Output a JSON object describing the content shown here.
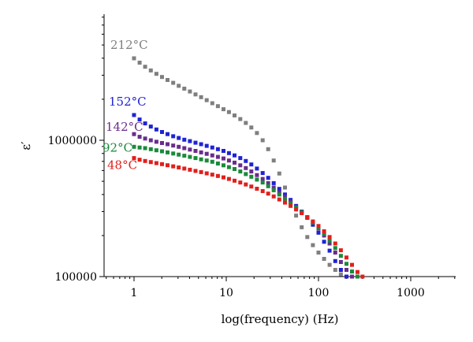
{
  "chart_data": {
    "type": "scatter",
    "title": "",
    "xlabel": "log(frequency) (Hz)",
    "ylabel": "ε′",
    "xscale": "log",
    "yscale": "log",
    "xlim": [
      0.5,
      3000
    ],
    "ylim": [
      100000,
      9000000
    ],
    "x_tick_labels": [
      "1",
      "10",
      "100",
      "1000"
    ],
    "y_tick_labels": [
      "100000",
      "1000000"
    ],
    "marker": "square",
    "grid": false,
    "legend": "inline-left",
    "series": [
      {
        "name": "212°C",
        "color": "#7f7f7f",
        "x": [
          1,
          1.15,
          1.32,
          1.52,
          1.75,
          2.01,
          2.31,
          2.66,
          3.05,
          3.51,
          4.04,
          4.64,
          5.34,
          6.14,
          7.06,
          8.11,
          9.33,
          10.7,
          12.3,
          14.2,
          16.3,
          18.7,
          21.5,
          24.8,
          28.5,
          32.7,
          37.6,
          43.3,
          49.8,
          57.2,
          65.8,
          75.6,
          87.0,
          100,
          115,
          132,
          152,
          175
        ],
        "y": [
          3990000,
          3710000,
          3460000,
          3250000,
          3070000,
          2910000,
          2770000,
          2640000,
          2510000,
          2390000,
          2280000,
          2170000,
          2070000,
          1970000,
          1870000,
          1780000,
          1690000,
          1610000,
          1520000,
          1430000,
          1340000,
          1240000,
          1130000,
          1000000,
          860000,
          710000,
          570000,
          450000,
          350000,
          280000,
          230000,
          195000,
          170000,
          150000,
          135000,
          122000,
          112000,
          104000
        ]
      },
      {
        "name": "152°C",
        "color": "#1f23d4",
        "x": [
          1,
          1.15,
          1.32,
          1.52,
          1.75,
          2.01,
          2.31,
          2.66,
          3.05,
          3.51,
          4.04,
          4.64,
          5.34,
          6.14,
          7.06,
          8.11,
          9.33,
          10.7,
          12.3,
          14.2,
          16.3,
          18.7,
          21.5,
          24.8,
          28.5,
          32.7,
          37.6,
          43.3,
          49.8,
          57.2,
          65.8,
          75.6,
          87.0,
          100,
          115,
          132,
          152,
          175,
          201
        ],
        "y": [
          1530000,
          1420000,
          1330000,
          1260000,
          1200000,
          1150000,
          1110000,
          1070000,
          1040000,
          1010000,
          985000,
          960000,
          935000,
          910000,
          885000,
          860000,
          835000,
          805000,
          775000,
          740000,
          705000,
          665000,
          620000,
          575000,
          530000,
          485000,
          440000,
          400000,
          365000,
          330000,
          300000,
          270000,
          240000,
          210000,
          180000,
          155000,
          130000,
          112000,
          100000
        ]
      },
      {
        "name": "142°C",
        "color": "#6a2c8c",
        "x": [
          1,
          1.15,
          1.32,
          1.52,
          1.75,
          2.01,
          2.31,
          2.66,
          3.05,
          3.51,
          4.04,
          4.64,
          5.34,
          6.14,
          7.06,
          8.11,
          9.33,
          10.7,
          12.3,
          14.2,
          16.3,
          18.7,
          21.5,
          24.8,
          28.5,
          32.7,
          37.6,
          43.3,
          49.8,
          57.2,
          65.8,
          75.6,
          87.0,
          100,
          115,
          132,
          152,
          175,
          201,
          231
        ],
        "y": [
          1110000,
          1060000,
          1030000,
          1000000,
          975000,
          955000,
          935000,
          915000,
          895000,
          875000,
          855000,
          835000,
          815000,
          795000,
          775000,
          755000,
          735000,
          710000,
          685000,
          655000,
          625000,
          590000,
          555000,
          520000,
          485000,
          450000,
          415000,
          385000,
          355000,
          325000,
          298000,
          272000,
          248000,
          225000,
          200000,
          175000,
          150000,
          128000,
          112000,
          100000
        ]
      },
      {
        "name": "92°C",
        "color": "#1a8a3a",
        "x": [
          1,
          1.15,
          1.32,
          1.52,
          1.75,
          2.01,
          2.31,
          2.66,
          3.05,
          3.51,
          4.04,
          4.64,
          5.34,
          6.14,
          7.06,
          8.11,
          9.33,
          10.7,
          12.3,
          14.2,
          16.3,
          18.7,
          21.5,
          24.8,
          28.5,
          32.7,
          37.6,
          43.3,
          49.8,
          57.2,
          65.8,
          75.6,
          87.0,
          100,
          115,
          132,
          152,
          175,
          201,
          231,
          265
        ],
        "y": [
          895000,
          885000,
          875000,
          860000,
          845000,
          830000,
          815000,
          800000,
          785000,
          770000,
          755000,
          740000,
          725000,
          710000,
          695000,
          675000,
          655000,
          635000,
          615000,
          590000,
          565000,
          540000,
          515000,
          490000,
          460000,
          430000,
          400000,
          372000,
          345000,
          320000,
          296000,
          272000,
          250000,
          228000,
          206000,
          184000,
          162000,
          142000,
          124000,
          109000,
          100000
        ]
      },
      {
        "name": "48°C",
        "color": "#e0201c",
        "x": [
          1,
          1.15,
          1.32,
          1.52,
          1.75,
          2.01,
          2.31,
          2.66,
          3.05,
          3.51,
          4.04,
          4.64,
          5.34,
          6.14,
          7.06,
          8.11,
          9.33,
          10.7,
          12.3,
          14.2,
          16.3,
          18.7,
          21.5,
          24.8,
          28.5,
          32.7,
          37.6,
          43.3,
          49.8,
          57.2,
          65.8,
          75.6,
          87.0,
          100,
          115,
          132,
          152,
          175,
          201,
          231,
          265,
          300
        ],
        "y": [
          740000,
          720000,
          705000,
          692000,
          680000,
          668000,
          656000,
          644000,
          632000,
          620000,
          608000,
          596000,
          584000,
          572000,
          560000,
          547000,
          534000,
          520000,
          505000,
          490000,
          474000,
          458000,
          441000,
          424000,
          406000,
          387000,
          368000,
          349000,
          330000,
          311000,
          292000,
          273000,
          254000,
          235000,
          215000,
          195000,
          175000,
          156000,
          138000,
          122000,
          108000,
          100000
        ]
      }
    ]
  }
}
